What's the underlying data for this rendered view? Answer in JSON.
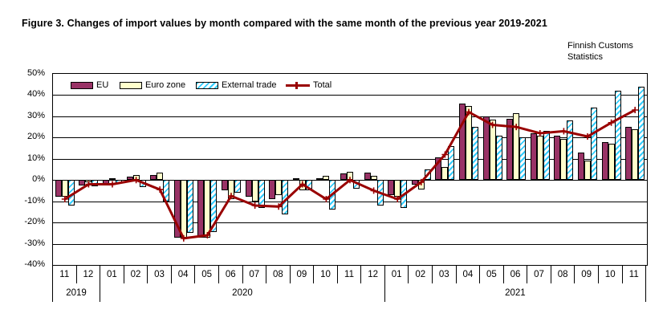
{
  "title": "Figure 3. Changes of import values by month compared with the same month of the previous year 2019-2021",
  "source_note": {
    "line1": "Finnish Customs",
    "line2": "Statistics"
  },
  "chart_data": {
    "type": "bar",
    "subtype": "grouped bars with overlaid line series",
    "title": "Figure 3. Changes of import values by month compared with the same month of the previous year 2019-2021",
    "xlabel": "",
    "ylabel": "",
    "ylim": [
      -40,
      50
    ],
    "ytick_labels": [
      "50%",
      "40%",
      "30%",
      "20%",
      "10%",
      "0%",
      "-10%",
      "-20%",
      "-30%",
      "-40%"
    ],
    "ytick_values": [
      50,
      40,
      30,
      20,
      10,
      0,
      -10,
      -20,
      -30,
      -40
    ],
    "grid": true,
    "legend_position": "top-inside",
    "categories": [
      "11",
      "12",
      "01",
      "02",
      "03",
      "04",
      "05",
      "06",
      "07",
      "08",
      "09",
      "10",
      "11",
      "12",
      "01",
      "02",
      "03",
      "04",
      "05",
      "06",
      "07",
      "08",
      "09",
      "10",
      "11"
    ],
    "year_groups": [
      {
        "label": "2019",
        "span": 2
      },
      {
        "label": "2020",
        "span": 12
      },
      {
        "label": "2021",
        "span": 11
      }
    ],
    "series": [
      {
        "name": "EU",
        "style": "bar",
        "color": "#993366",
        "values": [
          -8,
          -2.5,
          -2,
          1.5,
          2.5,
          -27,
          -27,
          -5,
          -8,
          -9,
          1,
          1,
          3,
          3.5,
          -7,
          -2,
          10.5,
          36,
          30,
          29,
          22,
          21,
          13,
          18,
          25
        ]
      },
      {
        "name": "Euro zone",
        "style": "bar",
        "color": "#FFFFCC",
        "values": [
          -8,
          -1,
          1,
          2.5,
          3.5,
          -27,
          -27,
          -9,
          -10,
          -7,
          -5,
          2,
          4,
          2,
          -8,
          -4.5,
          6,
          35,
          28.5,
          31.5,
          21,
          19.5,
          9,
          17,
          24
        ]
      },
      {
        "name": "External trade",
        "style": "bar-hatched",
        "color": "#33CCFF",
        "values": [
          -12,
          -3,
          -1.5,
          -3.5,
          -10,
          -25,
          -24.5,
          -6,
          -13,
          -16,
          -5,
          -14,
          -4,
          -12,
          -13,
          5,
          16,
          25,
          21,
          20,
          23,
          28,
          34,
          42,
          44
        ]
      },
      {
        "name": "Total",
        "style": "line",
        "color": "#990000",
        "values": [
          -9,
          -2,
          -2,
          0,
          -4.5,
          -27.5,
          -26,
          -7.5,
          -12,
          -12.5,
          -2,
          -9,
          0,
          -5,
          -9,
          -1,
          12,
          32,
          26,
          25,
          22,
          23,
          20.5,
          27,
          33
        ]
      }
    ]
  }
}
